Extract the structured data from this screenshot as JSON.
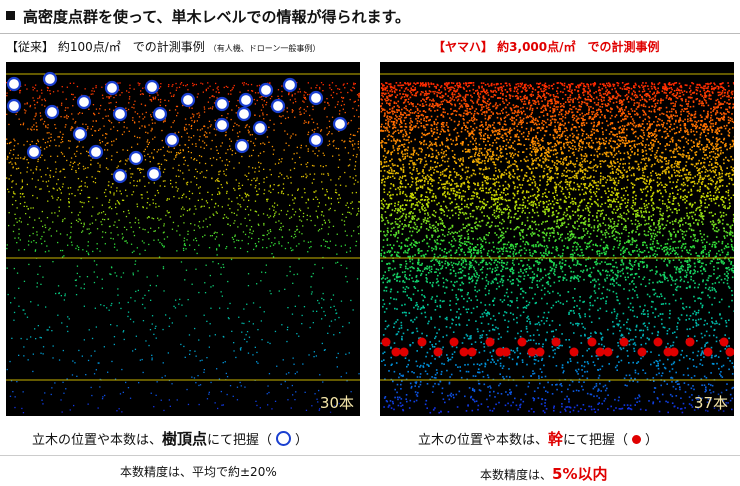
{
  "title": "高密度点群を使って、単木レベルでの情報が得られます。",
  "conventional": {
    "label": "【従来】 約100点/㎡　での計測事例",
    "note": "（有人機、ドローン一般事例）",
    "count": "30本",
    "desc_prefix": "立木の位置や本数は、",
    "desc_em": "樹頂点",
    "desc_suffix": "にて把握（",
    "desc_end": "）",
    "accuracy": "本数精度は、平均で約±20%"
  },
  "yamaha": {
    "label": "【ヤマハ】 約3,000点/㎡　での計測事例",
    "count": "37本",
    "desc_prefix": "立木の位置や本数は、",
    "desc_em": "幹",
    "desc_suffix": "にて把握（",
    "desc_end": "）",
    "accuracy_prefix": "本数精度は、",
    "accuracy_value": "5%以内"
  },
  "colors": {
    "marker_blue": "#1a3fd0",
    "marker_red": "#e00000",
    "guide_line": "#c8b400"
  }
}
